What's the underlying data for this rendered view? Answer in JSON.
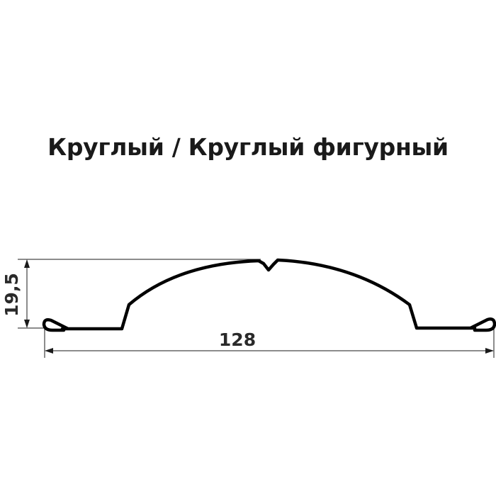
{
  "title": "Круглый / Круглый фигурный",
  "dimensions": {
    "height": "19,5",
    "width": "128"
  },
  "colors": {
    "profile": "#000000",
    "dimension_lines": "#1a1a1a"
  }
}
